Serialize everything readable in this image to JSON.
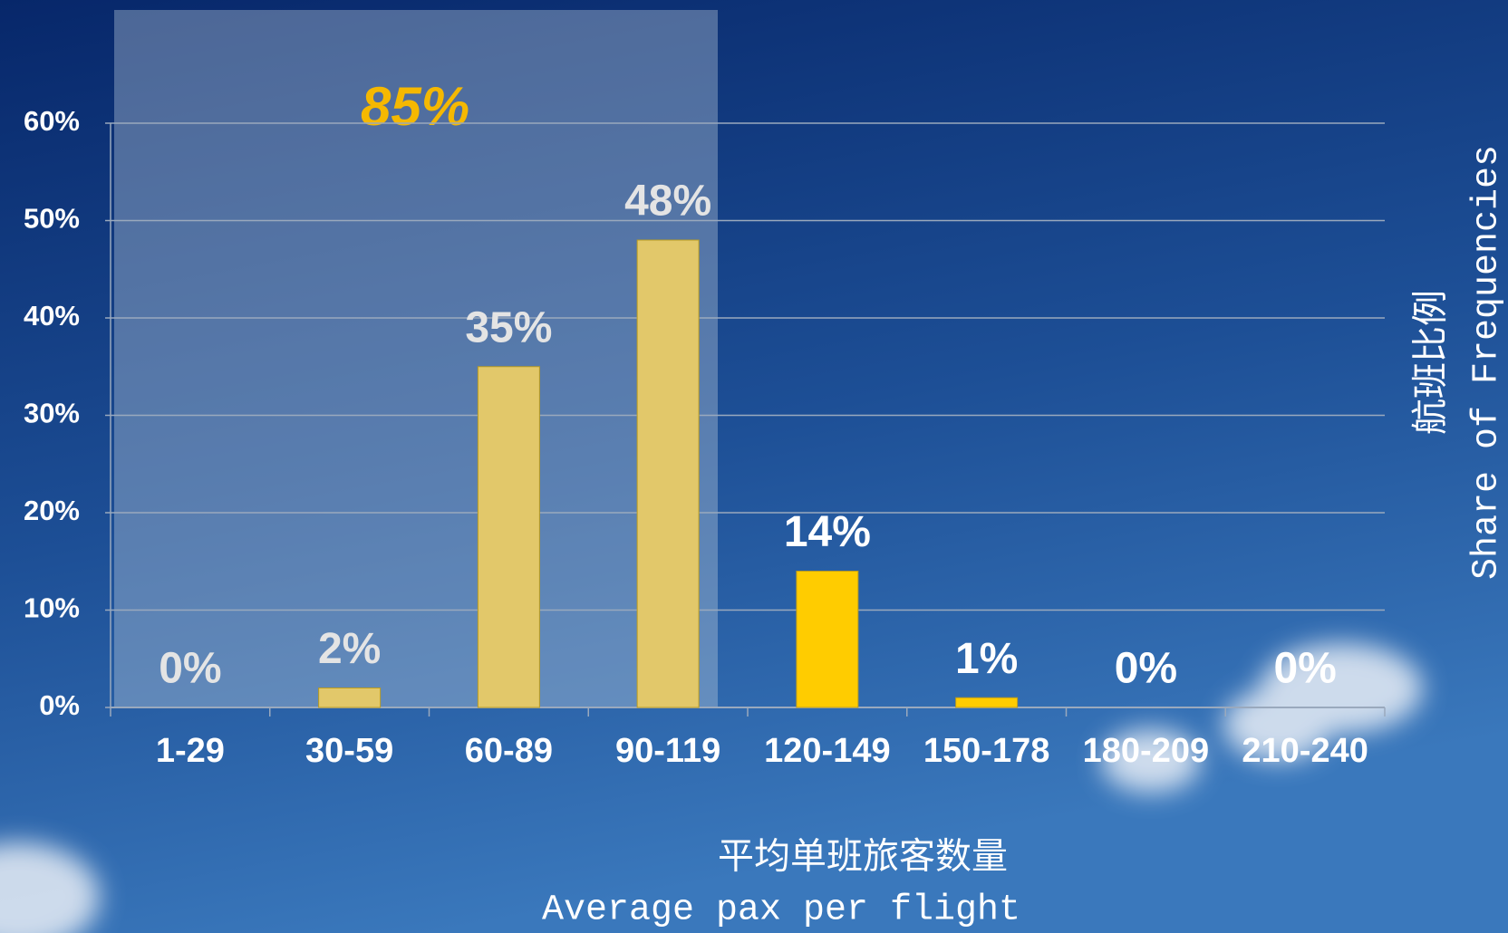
{
  "chart_data": {
    "type": "bar",
    "categories": [
      "1-29",
      "30-59",
      "60-89",
      "90-119",
      "120-149",
      "150-178",
      "180-209",
      "210-240"
    ],
    "values": [
      0,
      2,
      35,
      48,
      14,
      1,
      0,
      0
    ],
    "value_labels": [
      "0%",
      "2%",
      "35%",
      "48%",
      "14%",
      "1%",
      "0%",
      "0%"
    ],
    "colors": [
      "#e2c86a",
      "#e2c86a",
      "#e2c86a",
      "#e2c86a",
      "#ffcc00",
      "#ffcc00",
      "#ffcc00",
      "#ffcc00"
    ],
    "label_colors": [
      "#e4e4e4",
      "#e4e4e4",
      "#e4e4e4",
      "#e4e4e4",
      "#ffffff",
      "#ffffff",
      "#ffffff",
      "#ffffff"
    ],
    "ylim": [
      0,
      60
    ],
    "yticks": [
      {
        "value": 0,
        "label": "0%"
      },
      {
        "value": 10,
        "label": "10%"
      },
      {
        "value": 20,
        "label": "20%"
      },
      {
        "value": 30,
        "label": "30%"
      },
      {
        "value": 40,
        "label": "40%"
      },
      {
        "value": 50,
        "label": "50%"
      },
      {
        "value": 60,
        "label": "60%"
      }
    ],
    "grid": true,
    "annotation": "85%",
    "x_label": [
      "平均单班旅客数量",
      "Average pax per flight"
    ],
    "y_label": [
      "航班比例",
      "Share of Frequencies"
    ]
  }
}
